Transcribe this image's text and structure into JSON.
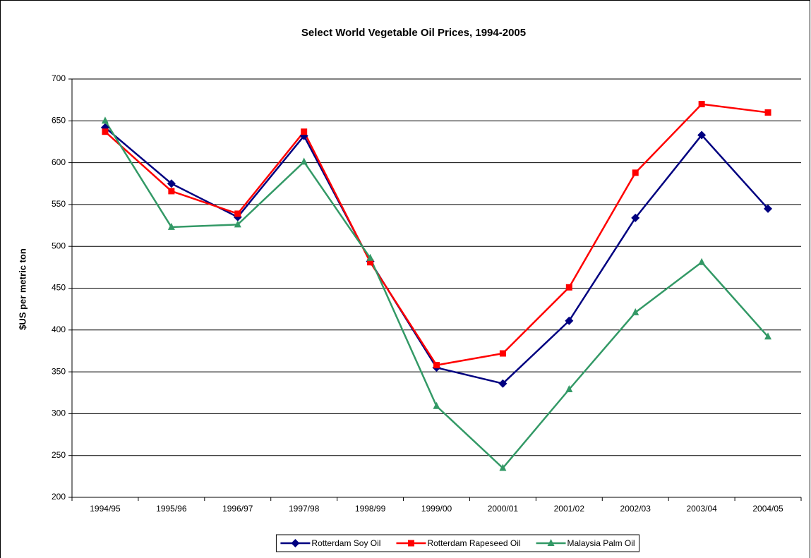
{
  "chart_data": {
    "type": "line",
    "title": "Select World Vegetable Oil Prices, 1994-2005",
    "y_label": "$US per metric ton",
    "categories": [
      "1994/95",
      "1995/96",
      "1996/97",
      "1997/98",
      "1998/99",
      "1999/00",
      "2000/01",
      "2001/02",
      "2002/03",
      "2003/04",
      "2004/05"
    ],
    "series": [
      {
        "name": "Rotterdam Soy Oil",
        "color": "#000080",
        "marker": "diamond",
        "values": [
          642,
          575,
          535,
          632,
          482,
          355,
          336,
          411,
          534,
          633,
          545
        ]
      },
      {
        "name": "Rotterdam Rapeseed Oil",
        "color": "#ff0000",
        "marker": "square",
        "values": [
          637,
          566,
          539,
          637,
          481,
          358,
          372,
          451,
          588,
          670,
          660
        ]
      },
      {
        "name": "Malaysia Palm Oil",
        "color": "#339966",
        "marker": "triangle",
        "values": [
          650,
          523,
          526,
          601,
          486,
          309,
          235,
          329,
          421,
          481,
          392
        ]
      }
    ],
    "ylim": [
      200,
      700
    ],
    "yticks": [
      200,
      250,
      300,
      350,
      400,
      450,
      500,
      550,
      600,
      650,
      700
    ],
    "grid": true,
    "legend": "bottom"
  }
}
